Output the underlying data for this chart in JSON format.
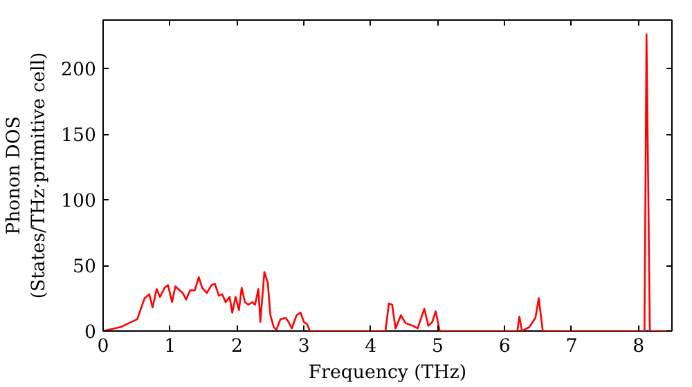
{
  "chart_data": {
    "type": "line",
    "xlabel": "Frequency (THz)",
    "ylabel": "Phonon DOS\n(States/THz·primitive cell)",
    "xlim": [
      0,
      8.5
    ],
    "ylim": [
      0,
      237
    ],
    "xticks": [
      0,
      1,
      2,
      3,
      4,
      5,
      6,
      7,
      8
    ],
    "yticks": [
      0,
      50,
      100,
      150,
      200
    ],
    "grid": false,
    "series": [
      {
        "color": "#ff0000",
        "x": [
          0,
          0.26,
          0.51,
          0.62,
          0.69,
          0.74,
          0.8,
          0.85,
          0.92,
          0.97,
          1.03,
          1.08,
          1.19,
          1.24,
          1.3,
          1.37,
          1.43,
          1.48,
          1.55,
          1.62,
          1.67,
          1.73,
          1.78,
          1.83,
          1.89,
          1.93,
          1.98,
          2.03,
          2.07,
          2.12,
          2.17,
          2.23,
          2.27,
          2.32,
          2.35,
          2.41,
          2.46,
          2.5,
          2.55,
          2.59,
          2.65,
          2.73,
          2.77,
          2.82,
          2.89,
          2.95,
          3.0,
          3.05,
          3.09,
          4.22,
          4.27,
          4.32,
          4.37,
          4.45,
          4.52,
          4.63,
          4.7,
          4.8,
          4.86,
          4.92,
          4.97,
          5.03,
          6.19,
          6.22,
          6.26,
          6.37,
          6.46,
          6.51,
          6.57,
          8.09,
          8.12,
          8.17,
          8.5
        ],
        "values": [
          0,
          3,
          9,
          25,
          28,
          18,
          32,
          26,
          33,
          35,
          22,
          34,
          29,
          24,
          31,
          31,
          41,
          33,
          29,
          35,
          36,
          27,
          28,
          22,
          26,
          14,
          26,
          16,
          33,
          22,
          20,
          22,
          20,
          32,
          7,
          45,
          37,
          12,
          3,
          1,
          9,
          10,
          7,
          2,
          12,
          14,
          7,
          5,
          0,
          0,
          21,
          20,
          2,
          12,
          6,
          4,
          2,
          17,
          4,
          7,
          15,
          0,
          0,
          11,
          0,
          3,
          10,
          25,
          0,
          0,
          226,
          0,
          0
        ]
      }
    ]
  }
}
